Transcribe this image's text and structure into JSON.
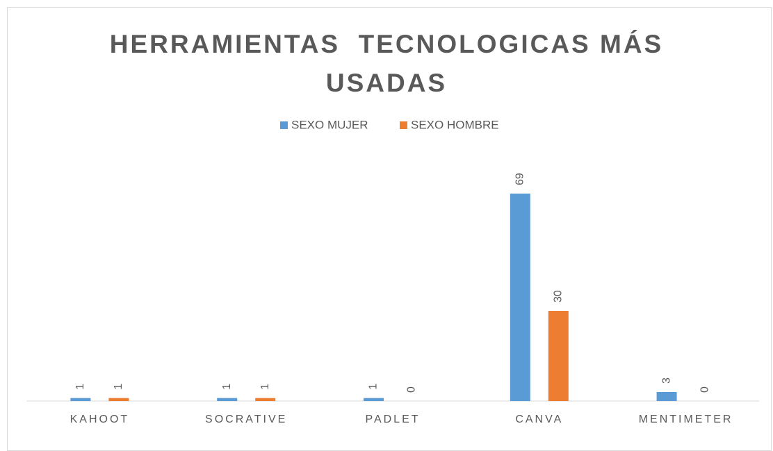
{
  "chart_data": {
    "type": "bar",
    "title": "HERRAMIENTAS  TECNOLOGICAS MÁS USADAS",
    "categories": [
      "KAHOOT",
      "SOCRATIVE",
      "PADLET",
      "CANVA",
      "MENTIMETER"
    ],
    "series": [
      {
        "name": "SEXO MUJER",
        "color": "#5b9bd5",
        "values": [
          1,
          1,
          1,
          69,
          3
        ]
      },
      {
        "name": "SEXO HOMBRE",
        "color": "#ed7d31",
        "values": [
          1,
          1,
          0,
          30,
          0
        ]
      }
    ],
    "legend": "top"
  }
}
